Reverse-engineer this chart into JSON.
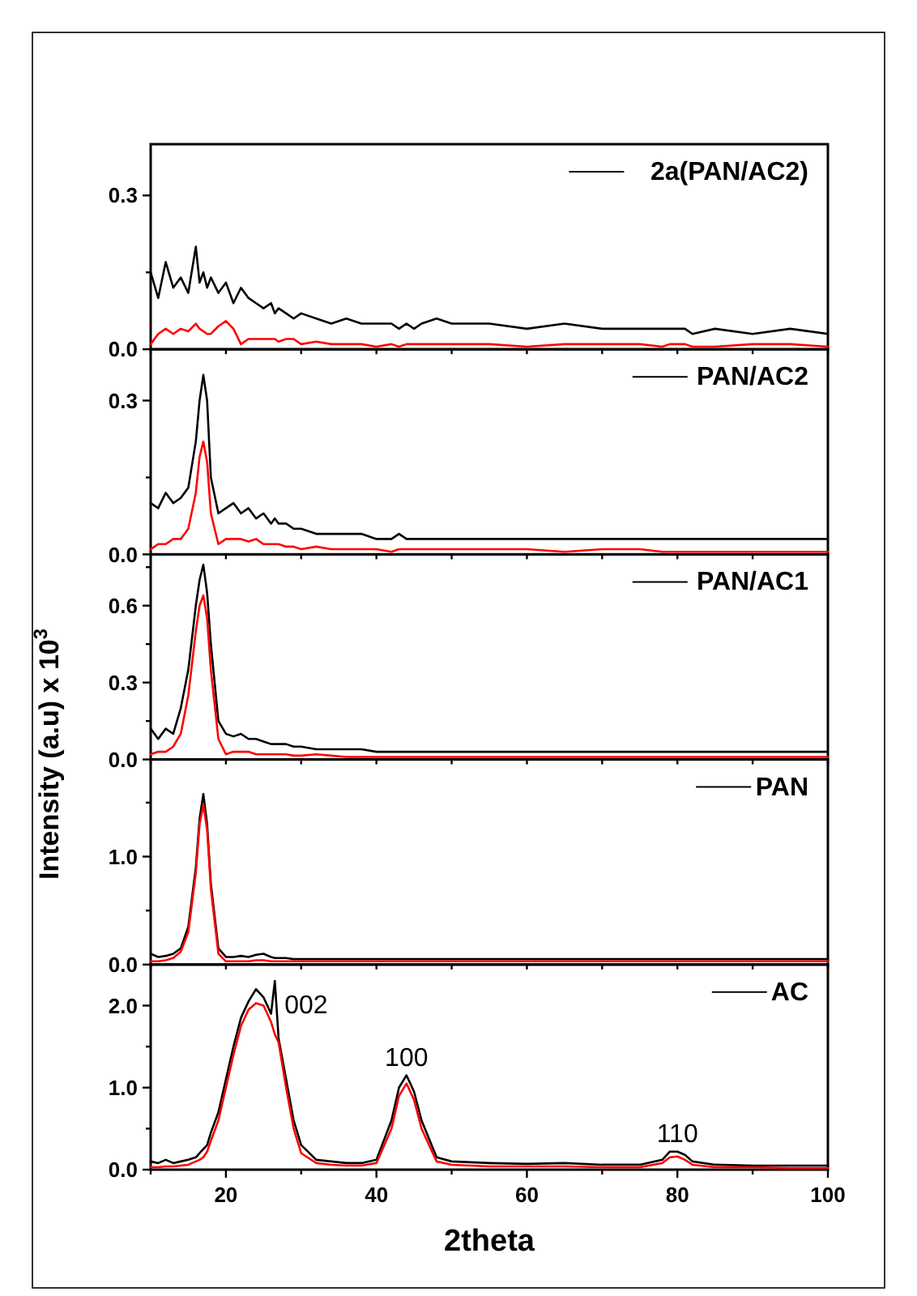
{
  "chart_data": [
    {
      "type": "line",
      "x": [
        10,
        11,
        12,
        13,
        14,
        15,
        16,
        16.5,
        17,
        17.5,
        18,
        19,
        20,
        21,
        22,
        23,
        24,
        25,
        26,
        26.5,
        27,
        28,
        29,
        30,
        32,
        34,
        36,
        38,
        40,
        42,
        43,
        44,
        45,
        46,
        48,
        50,
        55,
        60,
        65,
        70,
        75,
        78,
        79,
        80,
        81,
        82,
        85,
        90,
        95,
        100
      ],
      "xlim": [
        10,
        100
      ],
      "xticks": [
        {
          "value": 10,
          "label": null
        },
        {
          "value": 20,
          "label": null
        },
        {
          "value": 30,
          "label": null
        },
        {
          "value": 40,
          "label": null
        },
        {
          "value": 50,
          "label": null
        },
        {
          "value": 60,
          "label": null
        },
        {
          "value": 70,
          "label": null
        },
        {
          "value": 80,
          "label": null
        },
        {
          "value": 90,
          "label": null
        },
        {
          "value": 100,
          "label": null
        }
      ],
      "ylim": [
        0,
        0.4
      ],
      "yticks": [
        {
          "value": 0,
          "label": "0.0"
        },
        {
          "value": 0.15,
          "label": null
        },
        0.3
      ],
      "tick_labels": "y",
      "legend": "top right",
      "series": [
        {
          "name": "2a(PAN/AC2)",
          "color": "#000000",
          "values": [
            0.15,
            0.1,
            0.17,
            0.12,
            0.14,
            0.11,
            0.2,
            0.13,
            0.15,
            0.12,
            0.14,
            0.11,
            0.13,
            0.09,
            0.12,
            0.1,
            0.09,
            0.08,
            0.09,
            0.07,
            0.08,
            0.07,
            0.06,
            0.07,
            0.06,
            0.05,
            0.06,
            0.05,
            0.05,
            0.05,
            0.04,
            0.05,
            0.04,
            0.05,
            0.06,
            0.05,
            0.05,
            0.04,
            0.05,
            0.04,
            0.04,
            0.04,
            0.04,
            0.04,
            0.04,
            0.03,
            0.04,
            0.03,
            0.04,
            0.03
          ]
        },
        {
          "color": "#ff0000",
          "values": [
            0.01,
            0.03,
            0.04,
            0.03,
            0.04,
            0.035,
            0.05,
            0.04,
            0.035,
            0.03,
            0.03,
            0.045,
            0.055,
            0.04,
            0.01,
            0.02,
            0.02,
            0.02,
            0.02,
            0.02,
            0.015,
            0.02,
            0.02,
            0.01,
            0.015,
            0.01,
            0.01,
            0.01,
            0.005,
            0.01,
            0.005,
            0.01,
            0.01,
            0.01,
            0.01,
            0.01,
            0.01,
            0.005,
            0.01,
            0.01,
            0.01,
            0.005,
            0.01,
            0.01,
            0.01,
            0.005,
            0.005,
            0.01,
            0.01,
            0.005
          ]
        }
      ]
    },
    {
      "type": "line",
      "x": [
        10,
        11,
        12,
        13,
        14,
        15,
        16,
        16.5,
        17,
        17.5,
        18,
        19,
        20,
        21,
        22,
        23,
        24,
        25,
        26,
        26.5,
        27,
        28,
        29,
        30,
        32,
        34,
        36,
        38,
        40,
        42,
        43,
        44,
        45,
        46,
        48,
        50,
        55,
        60,
        65,
        70,
        75,
        78,
        79,
        80,
        81,
        82,
        85,
        90,
        95,
        100
      ],
      "xlim": [
        10,
        100
      ],
      "xticks": [
        {
          "value": 10,
          "label": null
        },
        {
          "value": 20,
          "label": null
        },
        {
          "value": 30,
          "label": null
        },
        {
          "value": 40,
          "label": null
        },
        {
          "value": 50,
          "label": null
        },
        {
          "value": 60,
          "label": null
        },
        {
          "value": 70,
          "label": null
        },
        {
          "value": 80,
          "label": null
        },
        {
          "value": 90,
          "label": null
        },
        {
          "value": 100,
          "label": null
        }
      ],
      "ylim": [
        0,
        0.4
      ],
      "yticks": [
        {
          "value": 0,
          "label": "0.0"
        },
        {
          "value": 0.15,
          "label": null
        },
        0.3
      ],
      "tick_labels": "y",
      "legend": "top right",
      "series": [
        {
          "name": "PAN/AC2",
          "color": "#000000",
          "values": [
            0.1,
            0.09,
            0.12,
            0.1,
            0.11,
            0.13,
            0.22,
            0.3,
            0.35,
            0.3,
            0.15,
            0.08,
            0.09,
            0.1,
            0.08,
            0.09,
            0.07,
            0.08,
            0.06,
            0.07,
            0.06,
            0.06,
            0.05,
            0.05,
            0.04,
            0.04,
            0.04,
            0.04,
            0.03,
            0.03,
            0.04,
            0.03,
            0.03,
            0.03,
            0.03,
            0.03,
            0.03,
            0.03,
            0.03,
            0.03,
            0.03,
            0.03,
            0.03,
            0.03,
            0.03,
            0.03,
            0.03,
            0.03,
            0.03,
            0.03
          ]
        },
        {
          "color": "#ff0000",
          "values": [
            0.01,
            0.02,
            0.02,
            0.03,
            0.03,
            0.05,
            0.12,
            0.19,
            0.22,
            0.18,
            0.08,
            0.02,
            0.03,
            0.03,
            0.03,
            0.025,
            0.03,
            0.02,
            0.02,
            0.02,
            0.02,
            0.015,
            0.015,
            0.01,
            0.015,
            0.01,
            0.01,
            0.01,
            0.01,
            0.005,
            0.01,
            0.01,
            0.01,
            0.01,
            0.01,
            0.01,
            0.01,
            0.01,
            0.005,
            0.01,
            0.01,
            0.005,
            0.005,
            0.005,
            0.005,
            0.005,
            0.005,
            0.005,
            0.005,
            0.005
          ]
        }
      ]
    },
    {
      "type": "line",
      "ylabel": "Intensity (a.u) x 10$^{3}$",
      "x": [
        10,
        11,
        12,
        13,
        14,
        15,
        16,
        16.5,
        17,
        17.5,
        18,
        19,
        20,
        21,
        22,
        23,
        24,
        25,
        26,
        26.5,
        27,
        28,
        29,
        30,
        32,
        34,
        36,
        38,
        40,
        42,
        43,
        44,
        45,
        46,
        48,
        50,
        55,
        60,
        65,
        70,
        75,
        78,
        79,
        80,
        81,
        82,
        85,
        90,
        95,
        100
      ],
      "xlim": [
        10,
        100
      ],
      "xticks": [
        {
          "value": 10,
          "label": null
        },
        {
          "value": 20,
          "label": null
        },
        {
          "value": 30,
          "label": null
        },
        {
          "value": 40,
          "label": null
        },
        {
          "value": 50,
          "label": null
        },
        {
          "value": 60,
          "label": null
        },
        {
          "value": 70,
          "label": null
        },
        {
          "value": 80,
          "label": null
        },
        {
          "value": 90,
          "label": null
        },
        {
          "value": 100,
          "label": null
        }
      ],
      "ylim": [
        0,
        0.8
      ],
      "yticks": [
        {
          "value": 0,
          "label": "0.0"
        },
        {
          "value": 0.15,
          "label": null
        },
        {
          "value": 0.3,
          "label": "0.3"
        },
        {
          "value": 0.45,
          "label": null
        },
        {
          "value": 0.6,
          "label": "0.6"
        },
        {
          "value": 0.75,
          "label": null
        }
      ],
      "tick_labels": "y",
      "legend": "top right",
      "series": [
        {
          "name": "PAN/AC1",
          "color": "#000000",
          "values": [
            0.12,
            0.08,
            0.12,
            0.1,
            0.2,
            0.35,
            0.6,
            0.7,
            0.76,
            0.65,
            0.45,
            0.15,
            0.1,
            0.09,
            0.1,
            0.08,
            0.08,
            0.07,
            0.06,
            0.06,
            0.06,
            0.06,
            0.05,
            0.05,
            0.04,
            0.04,
            0.04,
            0.04,
            0.03,
            0.03,
            0.03,
            0.03,
            0.03,
            0.03,
            0.03,
            0.03,
            0.03,
            0.03,
            0.03,
            0.03,
            0.03,
            0.03,
            0.03,
            0.03,
            0.03,
            0.03,
            0.03,
            0.03,
            0.03,
            0.03
          ]
        },
        {
          "color": "#ff0000",
          "values": [
            0.02,
            0.03,
            0.03,
            0.05,
            0.1,
            0.25,
            0.5,
            0.6,
            0.64,
            0.55,
            0.35,
            0.08,
            0.02,
            0.03,
            0.03,
            0.03,
            0.02,
            0.02,
            0.02,
            0.02,
            0.02,
            0.02,
            0.015,
            0.015,
            0.02,
            0.015,
            0.01,
            0.01,
            0.01,
            0.01,
            0.01,
            0.01,
            0.01,
            0.01,
            0.01,
            0.01,
            0.01,
            0.01,
            0.01,
            0.01,
            0.01,
            0.01,
            0.01,
            0.01,
            0.01,
            0.01,
            0.01,
            0.01,
            0.01,
            0.01
          ]
        }
      ]
    },
    {
      "type": "line",
      "x": [
        10,
        11,
        12,
        13,
        14,
        15,
        16,
        16.5,
        17,
        17.5,
        18,
        19,
        20,
        21,
        22,
        23,
        24,
        25,
        26,
        26.5,
        27,
        28,
        29,
        30,
        32,
        34,
        36,
        38,
        40,
        42,
        43,
        44,
        45,
        46,
        48,
        50,
        55,
        60,
        65,
        70,
        75,
        78,
        79,
        80,
        81,
        82,
        85,
        90,
        95,
        100
      ],
      "xlim": [
        10,
        100
      ],
      "xticks": [
        {
          "value": 10,
          "label": null
        },
        {
          "value": 20,
          "label": null
        },
        {
          "value": 30,
          "label": null
        },
        {
          "value": 40,
          "label": null
        },
        {
          "value": 50,
          "label": null
        },
        {
          "value": 60,
          "label": null
        },
        {
          "value": 70,
          "label": null
        },
        {
          "value": 80,
          "label": null
        },
        {
          "value": 90,
          "label": null
        },
        {
          "value": 100,
          "label": null
        }
      ],
      "ylim": [
        0,
        1.9
      ],
      "yticks": [
        {
          "value": 0,
          "label": "0.0"
        },
        {
          "value": 0.5,
          "label": null
        },
        {
          "value": 1,
          "label": "1.0"
        },
        {
          "value": 1.5,
          "label": null
        }
      ],
      "tick_labels": "y",
      "legend": "top right",
      "series": [
        {
          "name": "PAN",
          "color": "#000000",
          "values": [
            0.1,
            0.07,
            0.08,
            0.1,
            0.15,
            0.35,
            0.9,
            1.35,
            1.58,
            1.3,
            0.75,
            0.15,
            0.07,
            0.07,
            0.08,
            0.07,
            0.09,
            0.1,
            0.07,
            0.06,
            0.06,
            0.06,
            0.05,
            0.05,
            0.05,
            0.05,
            0.05,
            0.05,
            0.05,
            0.05,
            0.05,
            0.05,
            0.05,
            0.05,
            0.05,
            0.05,
            0.05,
            0.05,
            0.05,
            0.05,
            0.05,
            0.05,
            0.05,
            0.05,
            0.05,
            0.05,
            0.05,
            0.05,
            0.05,
            0.05
          ]
        },
        {
          "color": "#ff0000",
          "values": [
            0.03,
            0.03,
            0.04,
            0.06,
            0.12,
            0.3,
            0.85,
            1.3,
            1.48,
            1.25,
            0.7,
            0.1,
            0.03,
            0.03,
            0.03,
            0.03,
            0.04,
            0.04,
            0.03,
            0.03,
            0.03,
            0.03,
            0.03,
            0.03,
            0.03,
            0.03,
            0.03,
            0.03,
            0.03,
            0.03,
            0.03,
            0.03,
            0.03,
            0.03,
            0.03,
            0.03,
            0.03,
            0.03,
            0.03,
            0.03,
            0.03,
            0.03,
            0.03,
            0.03,
            0.03,
            0.03,
            0.03,
            0.03,
            0.03,
            0.03
          ]
        }
      ]
    },
    {
      "type": "line",
      "xlabel": "2theta",
      "x": [
        10,
        11,
        12,
        13,
        14,
        15,
        16,
        16.5,
        17,
        17.5,
        18,
        19,
        20,
        21,
        22,
        23,
        24,
        25,
        26,
        26.5,
        27,
        28,
        29,
        30,
        32,
        34,
        36,
        38,
        40,
        42,
        43,
        44,
        45,
        46,
        48,
        50,
        55,
        60,
        65,
        70,
        75,
        78,
        79,
        80,
        81,
        82,
        85,
        90,
        95,
        100
      ],
      "xlim": [
        10,
        100
      ],
      "xticks": [
        {
          "value": 10,
          "label": null
        },
        20,
        {
          "value": 30,
          "label": null
        },
        40,
        {
          "value": 50,
          "label": null
        },
        60,
        {
          "value": 70,
          "label": null
        },
        80,
        {
          "value": 90,
          "label": null
        },
        100
      ],
      "ylim": [
        0,
        2.5
      ],
      "yticks": [
        {
          "value": 0,
          "label": "0.0"
        },
        {
          "value": 0.5,
          "label": null
        },
        {
          "value": 1,
          "label": "1.0"
        },
        {
          "value": 1.5,
          "label": null
        },
        {
          "value": 2,
          "label": "2.0"
        }
      ],
      "legend": "top right",
      "annotations": [
        {
          "text": "002",
          "x": 26.5,
          "y": 2.3
        },
        {
          "text": "100",
          "x": 44,
          "y": 1.15
        },
        {
          "text": "110",
          "x": 80,
          "y": 0.22
        }
      ],
      "series": [
        {
          "name": "AC",
          "color": "#000000",
          "values": [
            0.1,
            0.08,
            0.12,
            0.08,
            0.1,
            0.12,
            0.15,
            0.2,
            0.25,
            0.3,
            0.45,
            0.7,
            1.1,
            1.5,
            1.85,
            2.05,
            2.2,
            2.1,
            1.9,
            2.3,
            1.6,
            1.1,
            0.6,
            0.3,
            0.12,
            0.1,
            0.08,
            0.08,
            0.12,
            0.6,
            1.0,
            1.15,
            0.95,
            0.6,
            0.15,
            0.1,
            0.08,
            0.07,
            0.08,
            0.06,
            0.06,
            0.12,
            0.22,
            0.22,
            0.18,
            0.1,
            0.06,
            0.05,
            0.05,
            0.05
          ]
        },
        {
          "color": "#ff0000",
          "values": [
            0.03,
            0.03,
            0.04,
            0.04,
            0.05,
            0.06,
            0.1,
            0.12,
            0.15,
            0.22,
            0.35,
            0.6,
            1.0,
            1.4,
            1.75,
            1.95,
            2.03,
            2.0,
            1.8,
            1.65,
            1.55,
            1.0,
            0.5,
            0.2,
            0.08,
            0.06,
            0.05,
            0.05,
            0.08,
            0.5,
            0.9,
            1.05,
            0.85,
            0.5,
            0.1,
            0.06,
            0.04,
            0.04,
            0.04,
            0.03,
            0.03,
            0.08,
            0.15,
            0.16,
            0.12,
            0.06,
            0.03,
            0.03,
            0.02,
            0.02
          ]
        }
      ]
    }
  ]
}
